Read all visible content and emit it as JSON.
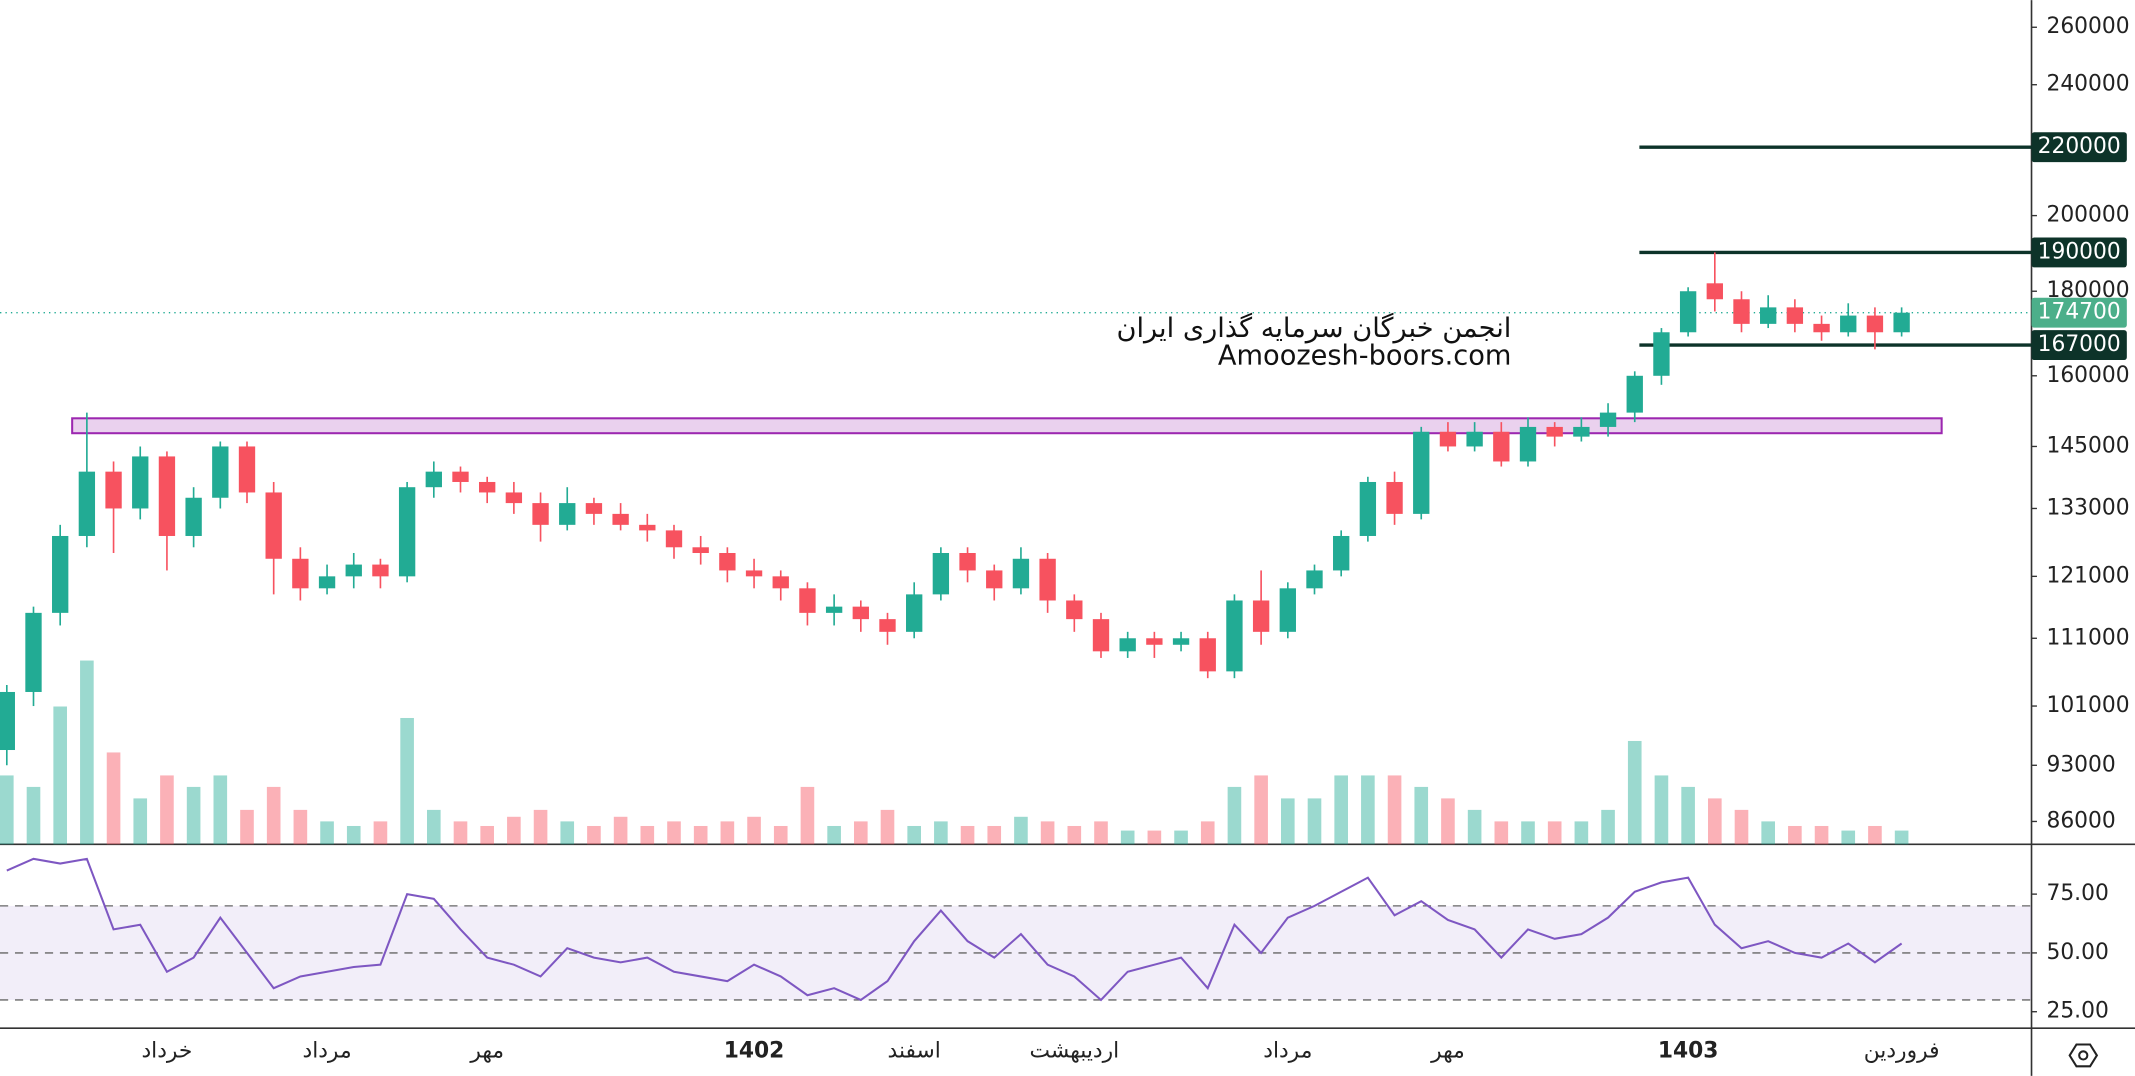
{
  "chart_data": [
    {
      "type": "candlestick",
      "categories": [
        null,
        null,
        null,
        null,
        null,
        null,
        "خرداد",
        null,
        null,
        null,
        null,
        null,
        "مرداد",
        null,
        null,
        null,
        null,
        null,
        "مهر",
        null,
        null,
        null,
        null,
        null,
        null,
        null,
        null,
        null,
        "1402",
        null,
        null,
        null,
        null,
        null,
        "اسفند",
        null,
        null,
        null,
        null,
        null,
        "اردیبهشت",
        null,
        null,
        null,
        null,
        null,
        null,
        null,
        "مرداد",
        null,
        null,
        null,
        null,
        null,
        "مهر",
        null,
        null,
        null,
        null,
        null,
        null,
        null,
        null,
        "1403",
        null,
        null,
        null,
        null,
        null,
        null,
        null,
        "فروردین"
      ],
      "open": [
        95000,
        103000,
        115000,
        128000,
        140000,
        133000,
        143000,
        128000,
        135000,
        145000,
        136000,
        124000,
        119000,
        121000,
        123000,
        121000,
        137000,
        140000,
        138000,
        136000,
        134000,
        130000,
        134000,
        132000,
        130000,
        129000,
        126000,
        125000,
        122000,
        121000,
        119000,
        115000,
        116000,
        114000,
        112000,
        118000,
        125000,
        122000,
        119000,
        124000,
        117000,
        114000,
        109000,
        111000,
        110000,
        111000,
        106000,
        117000,
        112000,
        119000,
        122000,
        128000,
        138000,
        132000,
        148000,
        145000,
        148000,
        142000,
        149000,
        147000,
        149000,
        152000,
        160000,
        170000,
        182000,
        178000,
        172000,
        176000,
        172000,
        170000,
        174000,
        170000
      ],
      "high": [
        104000,
        116000,
        130000,
        152000,
        142000,
        145000,
        144000,
        137000,
        146000,
        146000,
        138000,
        126000,
        123000,
        125000,
        124000,
        138000,
        142000,
        141000,
        139000,
        138000,
        136000,
        137000,
        135000,
        134000,
        132000,
        130000,
        128000,
        126000,
        124000,
        122000,
        120000,
        118000,
        117000,
        115000,
        120000,
        126000,
        126000,
        123000,
        126000,
        125000,
        118000,
        115000,
        112000,
        112000,
        112000,
        112000,
        118000,
        122000,
        120000,
        123000,
        129000,
        139000,
        140000,
        149000,
        150000,
        150000,
        150000,
        151000,
        150000,
        151000,
        154000,
        161000,
        171000,
        181000,
        190000,
        180000,
        179000,
        178000,
        174000,
        177000,
        176000,
        176000
      ],
      "low": [
        93000,
        101000,
        113000,
        126000,
        125000,
        131000,
        122000,
        126000,
        133000,
        134000,
        118000,
        117000,
        118000,
        119000,
        119000,
        120000,
        135000,
        136000,
        134000,
        132000,
        127000,
        129000,
        130000,
        129000,
        127000,
        124000,
        123000,
        120000,
        119000,
        117000,
        113000,
        113000,
        112000,
        110000,
        111000,
        117000,
        120000,
        117000,
        118000,
        115000,
        112000,
        108000,
        108000,
        108000,
        109000,
        105000,
        105000,
        110000,
        111000,
        118000,
        121000,
        127000,
        130000,
        131000,
        144000,
        144000,
        141000,
        141000,
        145000,
        146000,
        147000,
        150000,
        158000,
        169000,
        175000,
        170000,
        171000,
        170000,
        168000,
        169000,
        166000,
        169000
      ],
      "close": [
        103000,
        115000,
        128000,
        140000,
        133000,
        143000,
        128000,
        135000,
        145000,
        136000,
        124000,
        119000,
        121000,
        123000,
        121000,
        137000,
        140000,
        138000,
        136000,
        134000,
        130000,
        134000,
        132000,
        130000,
        129000,
        126000,
        125000,
        122000,
        121000,
        119000,
        115000,
        116000,
        114000,
        112000,
        118000,
        125000,
        122000,
        119000,
        124000,
        117000,
        114000,
        109000,
        111000,
        110000,
        111000,
        106000,
        117000,
        112000,
        119000,
        122000,
        128000,
        138000,
        132000,
        148000,
        145000,
        148000,
        142000,
        149000,
        147000,
        149000,
        152000,
        160000,
        170000,
        180000,
        178000,
        172000,
        176000,
        172000,
        170000,
        174000,
        170000,
        174700
      ],
      "volume": [
        30,
        25,
        60,
        80,
        40,
        20,
        30,
        25,
        30,
        15,
        25,
        15,
        10,
        8,
        10,
        55,
        15,
        10,
        8,
        12,
        15,
        10,
        8,
        12,
        8,
        10,
        8,
        10,
        12,
        8,
        25,
        8,
        10,
        15,
        8,
        10,
        8,
        8,
        12,
        10,
        8,
        10,
        6,
        6,
        6,
        10,
        25,
        30,
        20,
        20,
        30,
        30,
        30,
        25,
        20,
        15,
        10,
        10,
        10,
        10,
        15,
        45,
        30,
        25,
        20,
        15,
        10,
        8,
        8,
        6,
        8,
        6
      ],
      "up_color": "#22ab94",
      "down_color": "#f7525f",
      "log_scale": true,
      "ylim": [
        83300,
        270000
      ],
      "yticks": [
        260000,
        240000,
        200000,
        180000,
        160000,
        145000,
        133000,
        121000,
        111000,
        101000,
        93000,
        86000
      ],
      "levels": [
        220000,
        190000,
        167000
      ],
      "last_price": 174700,
      "zone": [
        147700,
        150800
      ],
      "watermark": [
        "انجمن خبرگان سرمایه گذاری ایران",
        "Amoozesh-boors.com"
      ]
    },
    {
      "type": "line",
      "values": [
        85,
        90,
        88,
        90,
        60,
        62,
        42,
        48,
        65,
        50,
        35,
        40,
        42,
        44,
        45,
        75,
        73,
        60,
        48,
        45,
        40,
        52,
        48,
        46,
        48,
        42,
        40,
        38,
        45,
        40,
        32,
        35,
        30,
        38,
        55,
        68,
        55,
        48,
        58,
        45,
        40,
        30,
        42,
        45,
        48,
        35,
        62,
        50,
        65,
        70,
        76,
        82,
        66,
        72,
        64,
        60,
        48,
        60,
        56,
        58,
        65,
        76,
        80,
        82,
        62,
        52,
        55,
        50,
        48,
        54,
        46,
        54
      ],
      "color": "#7e57c2",
      "ylim": [
        18,
        95
      ],
      "yticks": [
        {
          "value": 75,
          "label": "75.00"
        },
        {
          "value": 50,
          "label": "50.00"
        },
        {
          "value": 25,
          "label": "25.00"
        }
      ],
      "bands": [
        70,
        50,
        30
      ]
    }
  ]
}
